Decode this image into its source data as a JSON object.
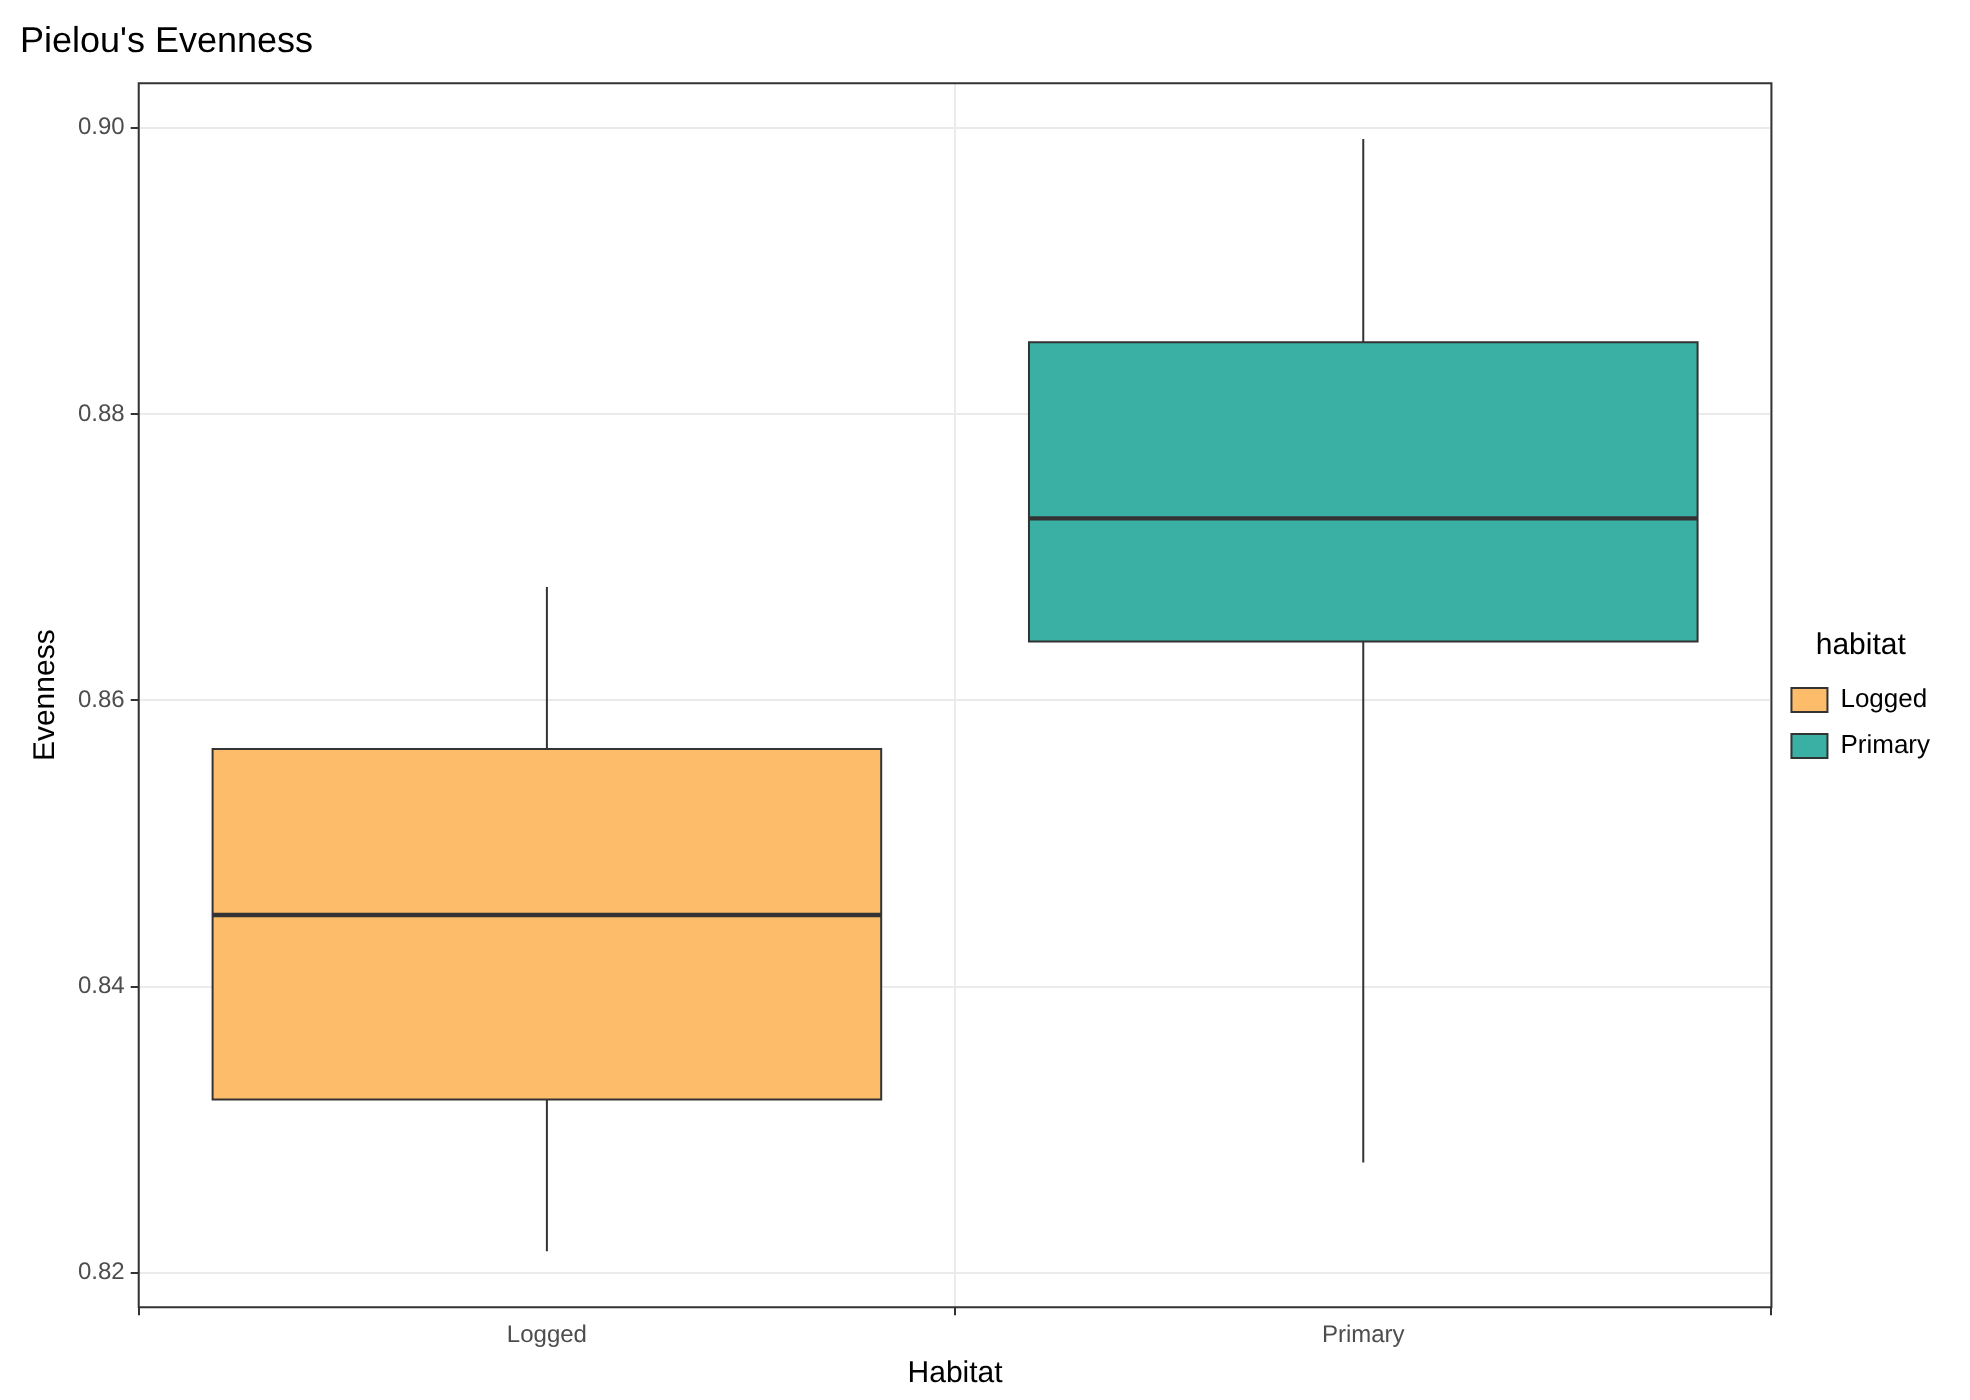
{
  "chart_data": {
    "type": "box",
    "title": "Pielou's Evenness",
    "xlabel": "Habitat",
    "ylabel": "Evenness",
    "legend_title": "habitat",
    "legend": "right",
    "grid": true,
    "categories": [
      "Logged",
      "Primary"
    ],
    "series": [
      {
        "name": "Logged",
        "color": "#fdbc6a",
        "boxes": [
          {
            "low": 0.8215,
            "q1": 0.8321,
            "median": 0.845,
            "q3": 0.8566,
            "high": 0.8679
          },
          null
        ]
      },
      {
        "name": "Primary",
        "color": "#3aafa4",
        "boxes": [
          null,
          {
            "low": 0.8277,
            "q1": 0.8641,
            "median": 0.8727,
            "q3": 0.885,
            "high": 0.8992
          }
        ]
      }
    ],
    "ylim": [
      0.8176,
      0.9031
    ],
    "yticks": [
      {
        "value": 0.82,
        "label": "0.82"
      },
      {
        "value": 0.84,
        "label": "0.84"
      },
      {
        "value": 0.86,
        "label": "0.86"
      },
      {
        "value": 0.88,
        "label": "0.88"
      },
      {
        "value": 0.9,
        "label": "0.90"
      }
    ]
  }
}
